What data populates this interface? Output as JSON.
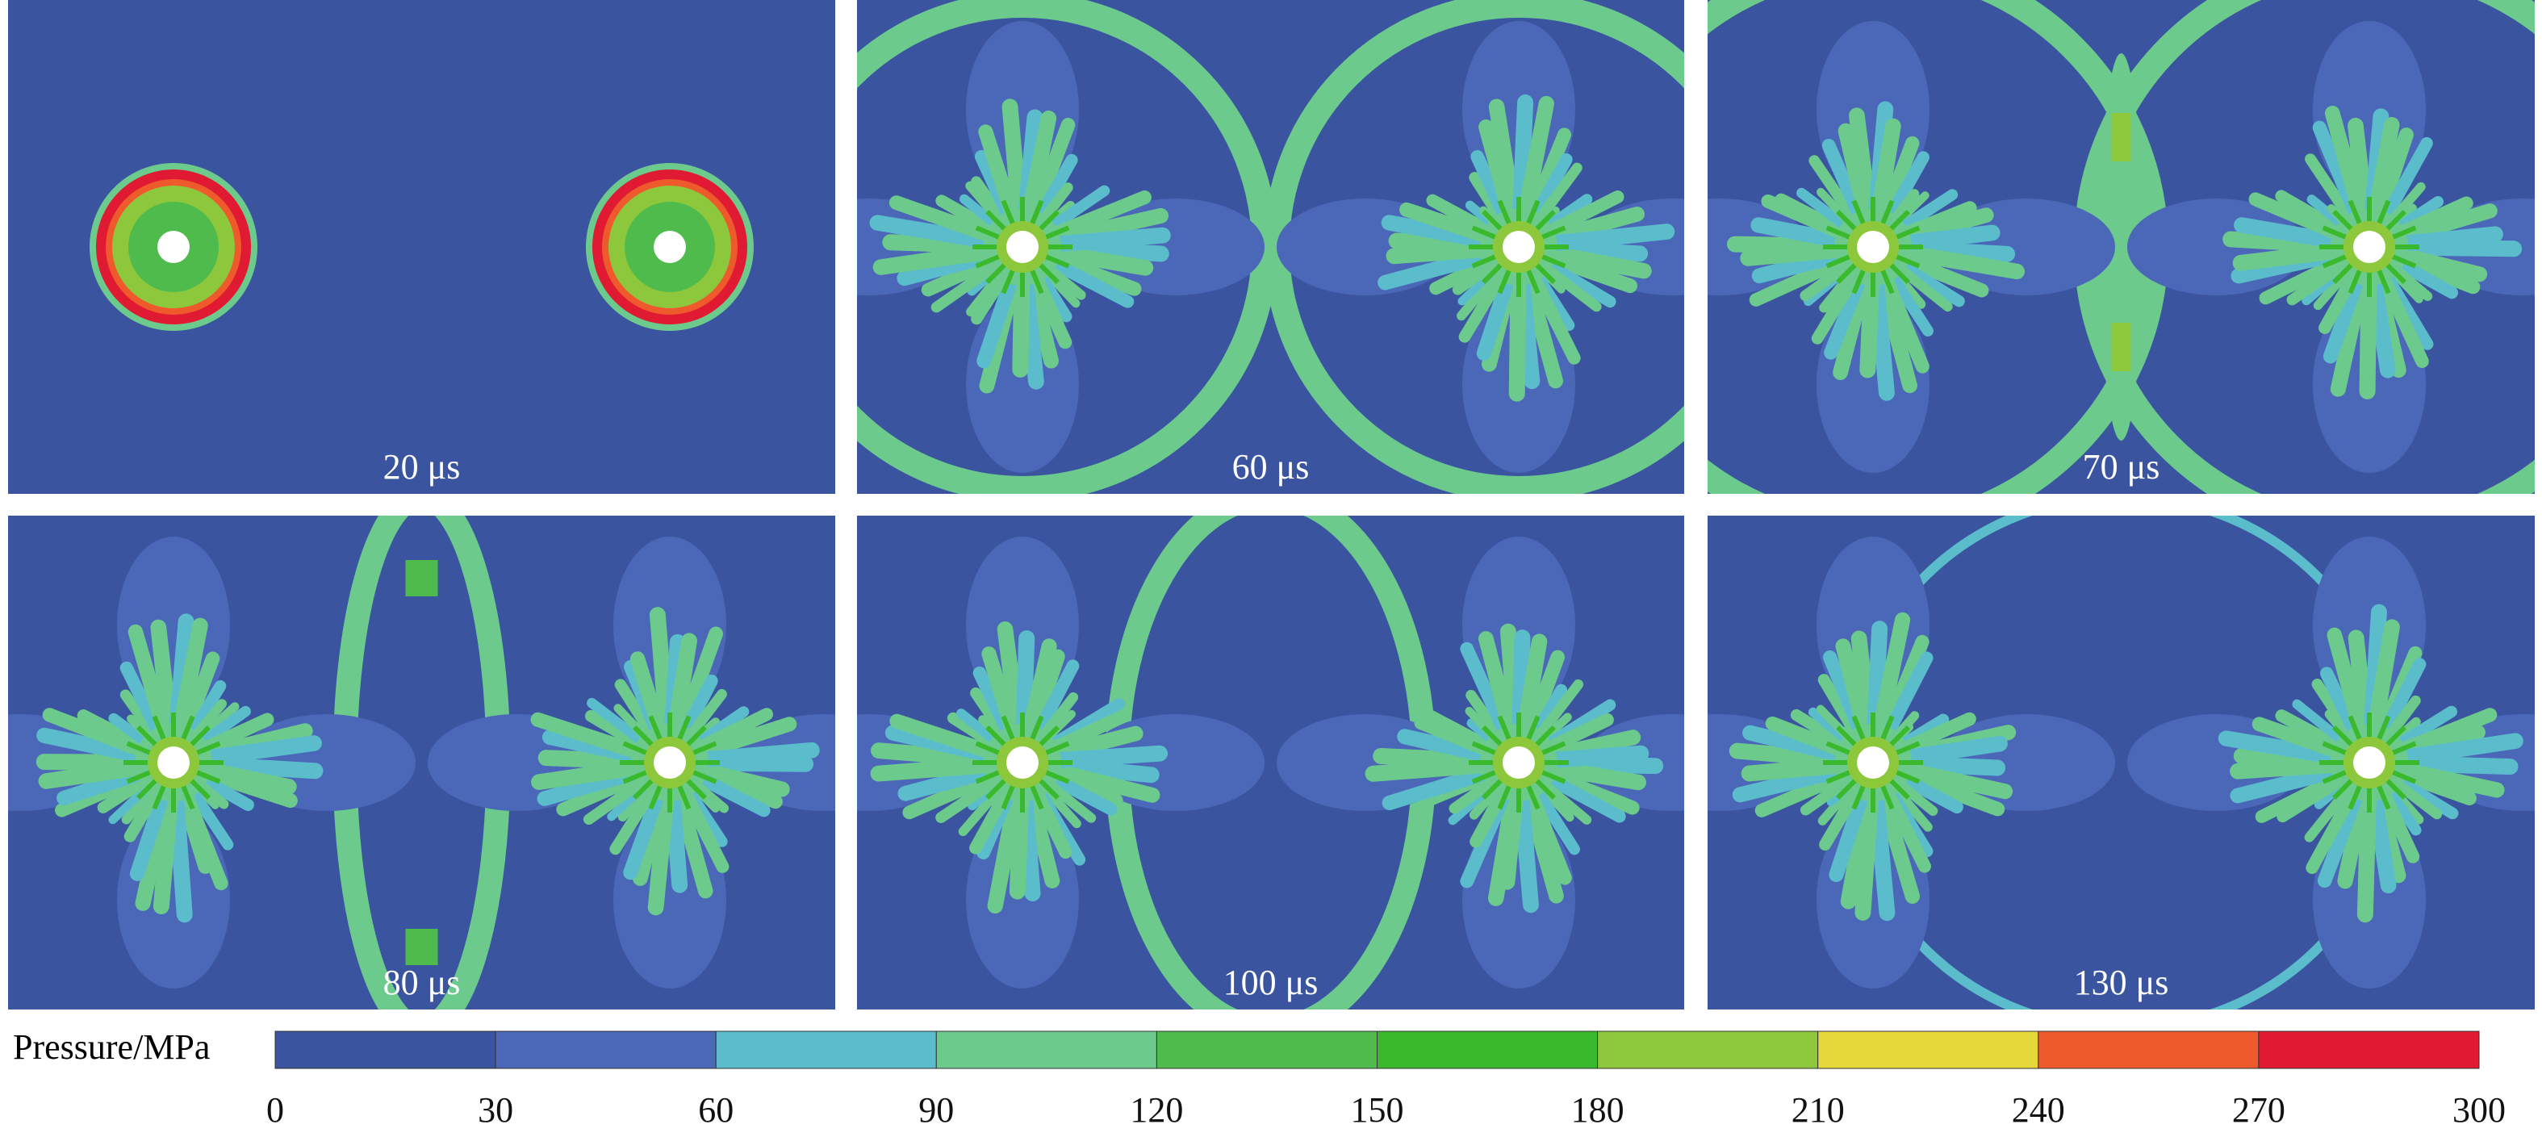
{
  "panels": [
    {
      "label": "20 μs"
    },
    {
      "label": "60 μs"
    },
    {
      "label": "70 μs"
    },
    {
      "label": "80 μs"
    },
    {
      "label": "100 μs"
    },
    {
      "label": "130 μs"
    }
  ],
  "colorbar": {
    "title": "Pressure/MPa",
    "ticks": [
      0,
      30,
      60,
      90,
      120,
      150,
      180,
      210,
      240,
      270,
      300
    ],
    "colors": [
      "#3a54a0",
      "#4b67b8",
      "#5bbdcc",
      "#6ccb8c",
      "#4fbb4c",
      "#3bb92c",
      "#8dc83c",
      "#e6d83a",
      "#ef5a2c",
      "#e01a32"
    ]
  }
}
